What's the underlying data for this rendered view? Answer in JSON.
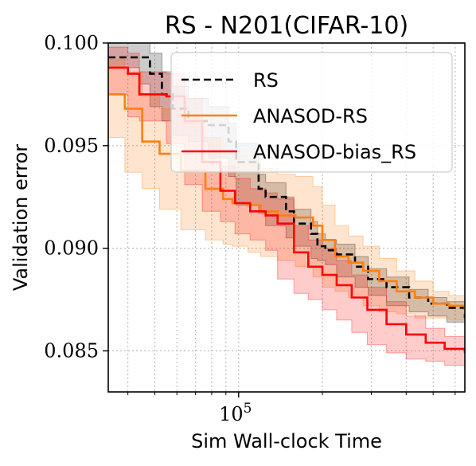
{
  "chart_data": {
    "type": "line",
    "title": "RS - N201(CIFAR-10)",
    "xlabel": "Sim Wall-clock Time",
    "ylabel": "Validation error",
    "x_scale": "log",
    "xlim": [
      34000,
      650000
    ],
    "ylim": [
      0.083,
      0.1
    ],
    "x_major_tick": {
      "value": 100000,
      "label": "10",
      "exponent": "5"
    },
    "x_minor_ticks": [
      40000,
      50000,
      60000,
      70000,
      80000,
      90000,
      200000,
      300000,
      400000,
      500000,
      600000
    ],
    "y_ticks": [
      0.085,
      0.09,
      0.095,
      0.1
    ],
    "y_tick_labels": [
      "0.085",
      "0.090",
      "0.095",
      "0.100"
    ],
    "grid": true,
    "legend_position": "top-right",
    "series": [
      {
        "name": "RS",
        "color": "#000000",
        "style": "dashed",
        "x": [
          34000,
          44000,
          48000,
          53000,
          58000,
          66000,
          78000,
          92000,
          98000,
          118000,
          125000,
          148000,
          158000,
          182000,
          192000,
          205000,
          225000,
          262000,
          292000,
          340000,
          410000,
          480000,
          560000,
          650000
        ],
        "y": [
          0.0993,
          0.0993,
          0.0985,
          0.0975,
          0.0968,
          0.0962,
          0.096,
          0.0952,
          0.0942,
          0.0929,
          0.0925,
          0.0918,
          0.0912,
          0.0907,
          0.0901,
          0.0899,
          0.0897,
          0.0891,
          0.0885,
          0.0881,
          0.0876,
          0.0873,
          0.0871,
          0.0866
        ],
        "lower": [
          0.0988,
          0.0988,
          0.098,
          0.0969,
          0.0962,
          0.0955,
          0.0952,
          0.0944,
          0.0935,
          0.0921,
          0.0917,
          0.0911,
          0.0905,
          0.0901,
          0.0895,
          0.0894,
          0.0892,
          0.0886,
          0.0881,
          0.0877,
          0.0872,
          0.0869,
          0.0867,
          0.0864
        ],
        "upper": [
          0.1,
          0.1,
          0.0995,
          0.0986,
          0.0979,
          0.0973,
          0.0969,
          0.0961,
          0.0951,
          0.0936,
          0.0932,
          0.0925,
          0.0919,
          0.0913,
          0.0907,
          0.0904,
          0.0902,
          0.0896,
          0.089,
          0.0886,
          0.088,
          0.0876,
          0.0874,
          0.0869
        ]
      },
      {
        "name": "ANASOD-RS",
        "color": "#ff7f0e",
        "style": "solid",
        "x": [
          34000,
          39000,
          45000,
          52000,
          62000,
          76000,
          88000,
          95000,
          108000,
          120000,
          138000,
          160000,
          185000,
          200000,
          222000,
          248000,
          280000,
          320000,
          370000,
          430000,
          500000,
          570000,
          650000
        ],
        "y": [
          0.0975,
          0.0968,
          0.0952,
          0.0946,
          0.0938,
          0.0929,
          0.0924,
          0.0922,
          0.0921,
          0.0918,
          0.0916,
          0.0915,
          0.0911,
          0.0904,
          0.0896,
          0.0893,
          0.0889,
          0.0884,
          0.0879,
          0.0876,
          0.0873,
          0.0872,
          0.087
        ],
        "lower": [
          0.0962,
          0.0954,
          0.0937,
          0.0929,
          0.0919,
          0.0909,
          0.0904,
          0.0902,
          0.0901,
          0.0898,
          0.0896,
          0.0894,
          0.0891,
          0.0886,
          0.0881,
          0.0879,
          0.0876,
          0.0872,
          0.0869,
          0.0868,
          0.0866,
          0.0866,
          0.0865
        ],
        "upper": [
          0.0992,
          0.0986,
          0.0974,
          0.0968,
          0.0962,
          0.0953,
          0.0947,
          0.0945,
          0.0943,
          0.0939,
          0.0936,
          0.0935,
          0.093,
          0.0921,
          0.0911,
          0.0906,
          0.0901,
          0.0895,
          0.0889,
          0.0884,
          0.0879,
          0.0877,
          0.0875
        ]
      },
      {
        "name": "ANASOD-bias_RS",
        "color": "#ff0000",
        "style": "solid",
        "x": [
          34000,
          40000,
          44000,
          55000,
          64000,
          74000,
          86000,
          97000,
          110000,
          125000,
          138000,
          158000,
          178000,
          200000,
          225000,
          255000,
          290000,
          340000,
          400000,
          470000,
          550000,
          650000
        ],
        "y": [
          0.0988,
          0.0985,
          0.0975,
          0.0974,
          0.0962,
          0.0942,
          0.0928,
          0.0922,
          0.0918,
          0.0916,
          0.0912,
          0.0898,
          0.0891,
          0.0887,
          0.0882,
          0.0876,
          0.087,
          0.0863,
          0.0858,
          0.0854,
          0.0851,
          0.0849
        ],
        "lower": [
          0.0978,
          0.0975,
          0.0964,
          0.0962,
          0.0951,
          0.0931,
          0.0918,
          0.0913,
          0.0907,
          0.0904,
          0.0899,
          0.0885,
          0.0878,
          0.0875,
          0.087,
          0.0865,
          0.0859,
          0.0853,
          0.0849,
          0.0846,
          0.0845,
          0.0843
        ],
        "upper": [
          0.0998,
          0.0995,
          0.0986,
          0.0985,
          0.0973,
          0.0954,
          0.094,
          0.0934,
          0.0929,
          0.0927,
          0.0924,
          0.0911,
          0.0904,
          0.09,
          0.0894,
          0.0887,
          0.0881,
          0.0874,
          0.0867,
          0.0861,
          0.0857,
          0.0855
        ]
      }
    ]
  }
}
